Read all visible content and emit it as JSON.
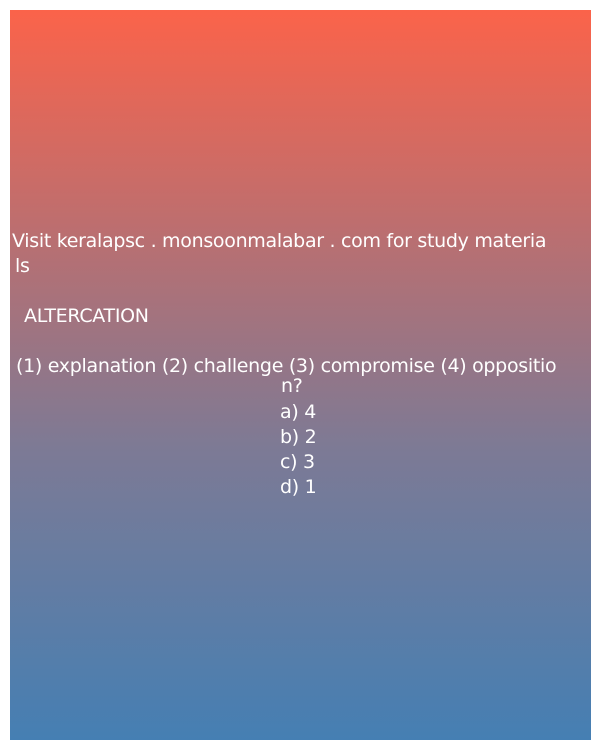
{
  "promo": {
    "line1": "Visit keralapsc . monsoonmalabar . com for study materia",
    "line2": "ls"
  },
  "question": {
    "word": "ALTERCATION",
    "line1": "(1) explanation (2) challenge (3) compromise (4) oppositio",
    "line2": "n?"
  },
  "options": {
    "a": "a) 4",
    "b": "b) 2",
    "c": "c) 3",
    "d": "d) 1"
  },
  "colors": {
    "gradient_top": "#fb634a",
    "gradient_bottom": "#457fb3",
    "text": "#ffffff"
  }
}
